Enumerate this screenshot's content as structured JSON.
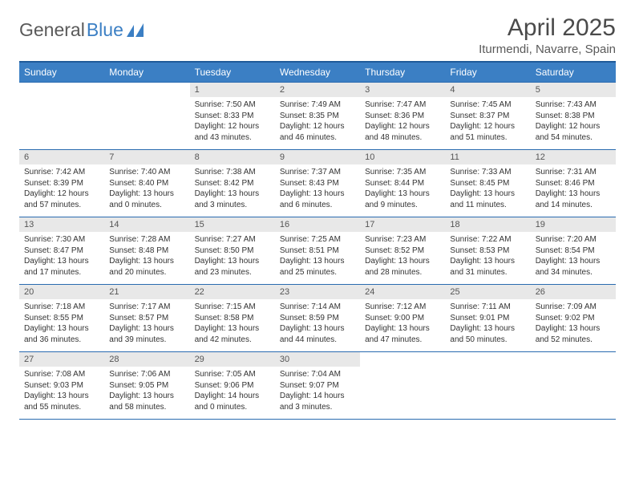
{
  "brand": {
    "part1": "General",
    "part2": "Blue"
  },
  "title": "April 2025",
  "location": "Iturmendi, Navarre, Spain",
  "dayHeaders": [
    "Sunday",
    "Monday",
    "Tuesday",
    "Wednesday",
    "Thursday",
    "Friday",
    "Saturday"
  ],
  "colors": {
    "headerBg": "#3b7fc4",
    "headerBorder": "#1f5a99",
    "cellBorder": "#2a6bb0",
    "daynumBg": "#e8e8e8",
    "text": "#333333",
    "muted": "#5a5a5a"
  },
  "weeks": [
    [
      {
        "empty": true
      },
      {
        "empty": true
      },
      {
        "num": "1",
        "sunrise": "7:50 AM",
        "sunset": "8:33 PM",
        "daylight": "12 hours and 43 minutes."
      },
      {
        "num": "2",
        "sunrise": "7:49 AM",
        "sunset": "8:35 PM",
        "daylight": "12 hours and 46 minutes."
      },
      {
        "num": "3",
        "sunrise": "7:47 AM",
        "sunset": "8:36 PM",
        "daylight": "12 hours and 48 minutes."
      },
      {
        "num": "4",
        "sunrise": "7:45 AM",
        "sunset": "8:37 PM",
        "daylight": "12 hours and 51 minutes."
      },
      {
        "num": "5",
        "sunrise": "7:43 AM",
        "sunset": "8:38 PM",
        "daylight": "12 hours and 54 minutes."
      }
    ],
    [
      {
        "num": "6",
        "sunrise": "7:42 AM",
        "sunset": "8:39 PM",
        "daylight": "12 hours and 57 minutes."
      },
      {
        "num": "7",
        "sunrise": "7:40 AM",
        "sunset": "8:40 PM",
        "daylight": "13 hours and 0 minutes."
      },
      {
        "num": "8",
        "sunrise": "7:38 AM",
        "sunset": "8:42 PM",
        "daylight": "13 hours and 3 minutes."
      },
      {
        "num": "9",
        "sunrise": "7:37 AM",
        "sunset": "8:43 PM",
        "daylight": "13 hours and 6 minutes."
      },
      {
        "num": "10",
        "sunrise": "7:35 AM",
        "sunset": "8:44 PM",
        "daylight": "13 hours and 9 minutes."
      },
      {
        "num": "11",
        "sunrise": "7:33 AM",
        "sunset": "8:45 PM",
        "daylight": "13 hours and 11 minutes."
      },
      {
        "num": "12",
        "sunrise": "7:31 AM",
        "sunset": "8:46 PM",
        "daylight": "13 hours and 14 minutes."
      }
    ],
    [
      {
        "num": "13",
        "sunrise": "7:30 AM",
        "sunset": "8:47 PM",
        "daylight": "13 hours and 17 minutes."
      },
      {
        "num": "14",
        "sunrise": "7:28 AM",
        "sunset": "8:48 PM",
        "daylight": "13 hours and 20 minutes."
      },
      {
        "num": "15",
        "sunrise": "7:27 AM",
        "sunset": "8:50 PM",
        "daylight": "13 hours and 23 minutes."
      },
      {
        "num": "16",
        "sunrise": "7:25 AM",
        "sunset": "8:51 PM",
        "daylight": "13 hours and 25 minutes."
      },
      {
        "num": "17",
        "sunrise": "7:23 AM",
        "sunset": "8:52 PM",
        "daylight": "13 hours and 28 minutes."
      },
      {
        "num": "18",
        "sunrise": "7:22 AM",
        "sunset": "8:53 PM",
        "daylight": "13 hours and 31 minutes."
      },
      {
        "num": "19",
        "sunrise": "7:20 AM",
        "sunset": "8:54 PM",
        "daylight": "13 hours and 34 minutes."
      }
    ],
    [
      {
        "num": "20",
        "sunrise": "7:18 AM",
        "sunset": "8:55 PM",
        "daylight": "13 hours and 36 minutes."
      },
      {
        "num": "21",
        "sunrise": "7:17 AM",
        "sunset": "8:57 PM",
        "daylight": "13 hours and 39 minutes."
      },
      {
        "num": "22",
        "sunrise": "7:15 AM",
        "sunset": "8:58 PM",
        "daylight": "13 hours and 42 minutes."
      },
      {
        "num": "23",
        "sunrise": "7:14 AM",
        "sunset": "8:59 PM",
        "daylight": "13 hours and 44 minutes."
      },
      {
        "num": "24",
        "sunrise": "7:12 AM",
        "sunset": "9:00 PM",
        "daylight": "13 hours and 47 minutes."
      },
      {
        "num": "25",
        "sunrise": "7:11 AM",
        "sunset": "9:01 PM",
        "daylight": "13 hours and 50 minutes."
      },
      {
        "num": "26",
        "sunrise": "7:09 AM",
        "sunset": "9:02 PM",
        "daylight": "13 hours and 52 minutes."
      }
    ],
    [
      {
        "num": "27",
        "sunrise": "7:08 AM",
        "sunset": "9:03 PM",
        "daylight": "13 hours and 55 minutes."
      },
      {
        "num": "28",
        "sunrise": "7:06 AM",
        "sunset": "9:05 PM",
        "daylight": "13 hours and 58 minutes."
      },
      {
        "num": "29",
        "sunrise": "7:05 AM",
        "sunset": "9:06 PM",
        "daylight": "14 hours and 0 minutes."
      },
      {
        "num": "30",
        "sunrise": "7:04 AM",
        "sunset": "9:07 PM",
        "daylight": "14 hours and 3 minutes."
      },
      {
        "empty": true
      },
      {
        "empty": true
      },
      {
        "empty": true
      }
    ]
  ]
}
